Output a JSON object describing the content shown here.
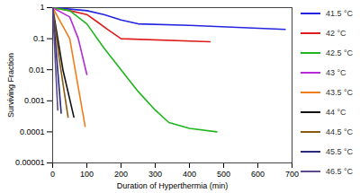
{
  "chart_data": {
    "type": "line",
    "x_label": "Duration of Hyperthermia (min)",
    "y_label": "Surviving Fraction",
    "xlim": [
      0,
      700
    ],
    "xticks": [
      0,
      100,
      200,
      300,
      400,
      500,
      600,
      700
    ],
    "ylim": [
      1e-05,
      1
    ],
    "yticks": [
      1e-05,
      0.0001,
      0.001,
      0.01,
      0.1,
      1
    ],
    "log": "y",
    "grid": false,
    "legend": "right",
    "series": [
      {
        "name": "41.5 °C",
        "color": "#2424e0",
        "x": [
          0,
          50,
          100,
          150,
          200,
          250,
          400,
          680
        ],
        "values": [
          1,
          0.9,
          0.8,
          0.6,
          0.4,
          0.3,
          0.27,
          0.2
        ]
      },
      {
        "name": "42 °C",
        "color": "#e01b1b",
        "x": [
          0,
          50,
          100,
          130,
          160,
          200,
          460
        ],
        "values": [
          1,
          0.8,
          0.6,
          0.35,
          0.2,
          0.1,
          0.08
        ]
      },
      {
        "name": "42.5 °C",
        "color": "#1fb51f",
        "x": [
          0,
          50,
          100,
          150,
          200,
          250,
          300,
          340,
          400,
          480
        ],
        "values": [
          1,
          0.8,
          0.3,
          0.05,
          0.01,
          0.002,
          0.0005,
          0.0002,
          0.00013,
          0.0001
        ]
      },
      {
        "name": "43 °C",
        "color": "#b52ad6",
        "x": [
          0,
          50,
          75,
          100
        ],
        "values": [
          1,
          0.5,
          0.1,
          0.007
        ]
      },
      {
        "name": "43.5 °C",
        "color": "#f07d1a",
        "x": [
          0,
          50,
          95
        ],
        "values": [
          1,
          0.1,
          0.00015
        ]
      },
      {
        "name": "44 °C",
        "color": "#111111",
        "x": [
          0,
          30,
          62
        ],
        "values": [
          1,
          0.01,
          0.0003
        ]
      },
      {
        "name": "44.5 °C",
        "color": "#8a5a12",
        "x": [
          0,
          20,
          45
        ],
        "values": [
          1,
          0.02,
          0.0003
        ]
      },
      {
        "name": "45.5 °C",
        "color": "#2b2a78",
        "x": [
          0,
          25
        ],
        "values": [
          1,
          0.0004
        ]
      },
      {
        "name": "46.5 °C",
        "color": "#5b4a8c",
        "x": [
          0,
          15
        ],
        "values": [
          1,
          0.0005
        ]
      }
    ]
  }
}
